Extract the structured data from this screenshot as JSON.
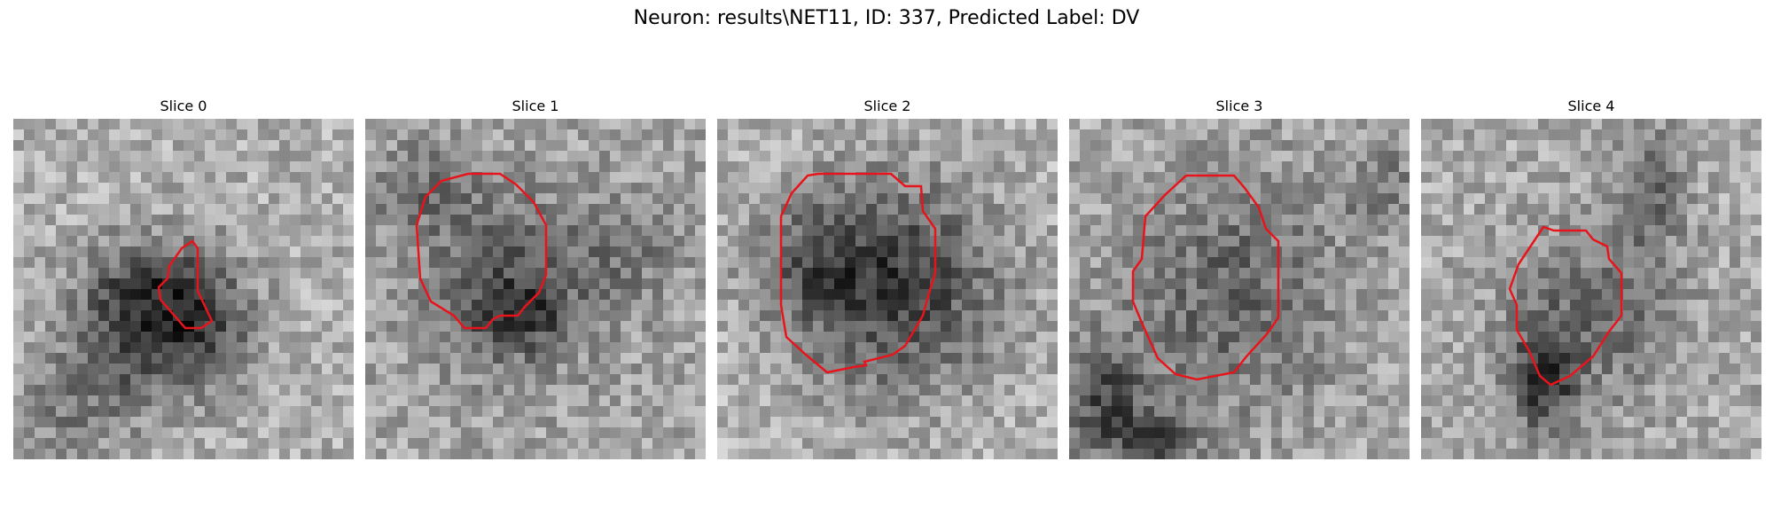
{
  "figure": {
    "title": "Neuron: results\\NET11, ID: 337, Predicted Label: DV",
    "outline_color": "#e8141c"
  },
  "slices": [
    {
      "label": "Slice 0"
    },
    {
      "label": "Slice 1"
    },
    {
      "label": "Slice 2"
    },
    {
      "label": "Slice 3"
    },
    {
      "label": "Slice 4"
    }
  ]
}
